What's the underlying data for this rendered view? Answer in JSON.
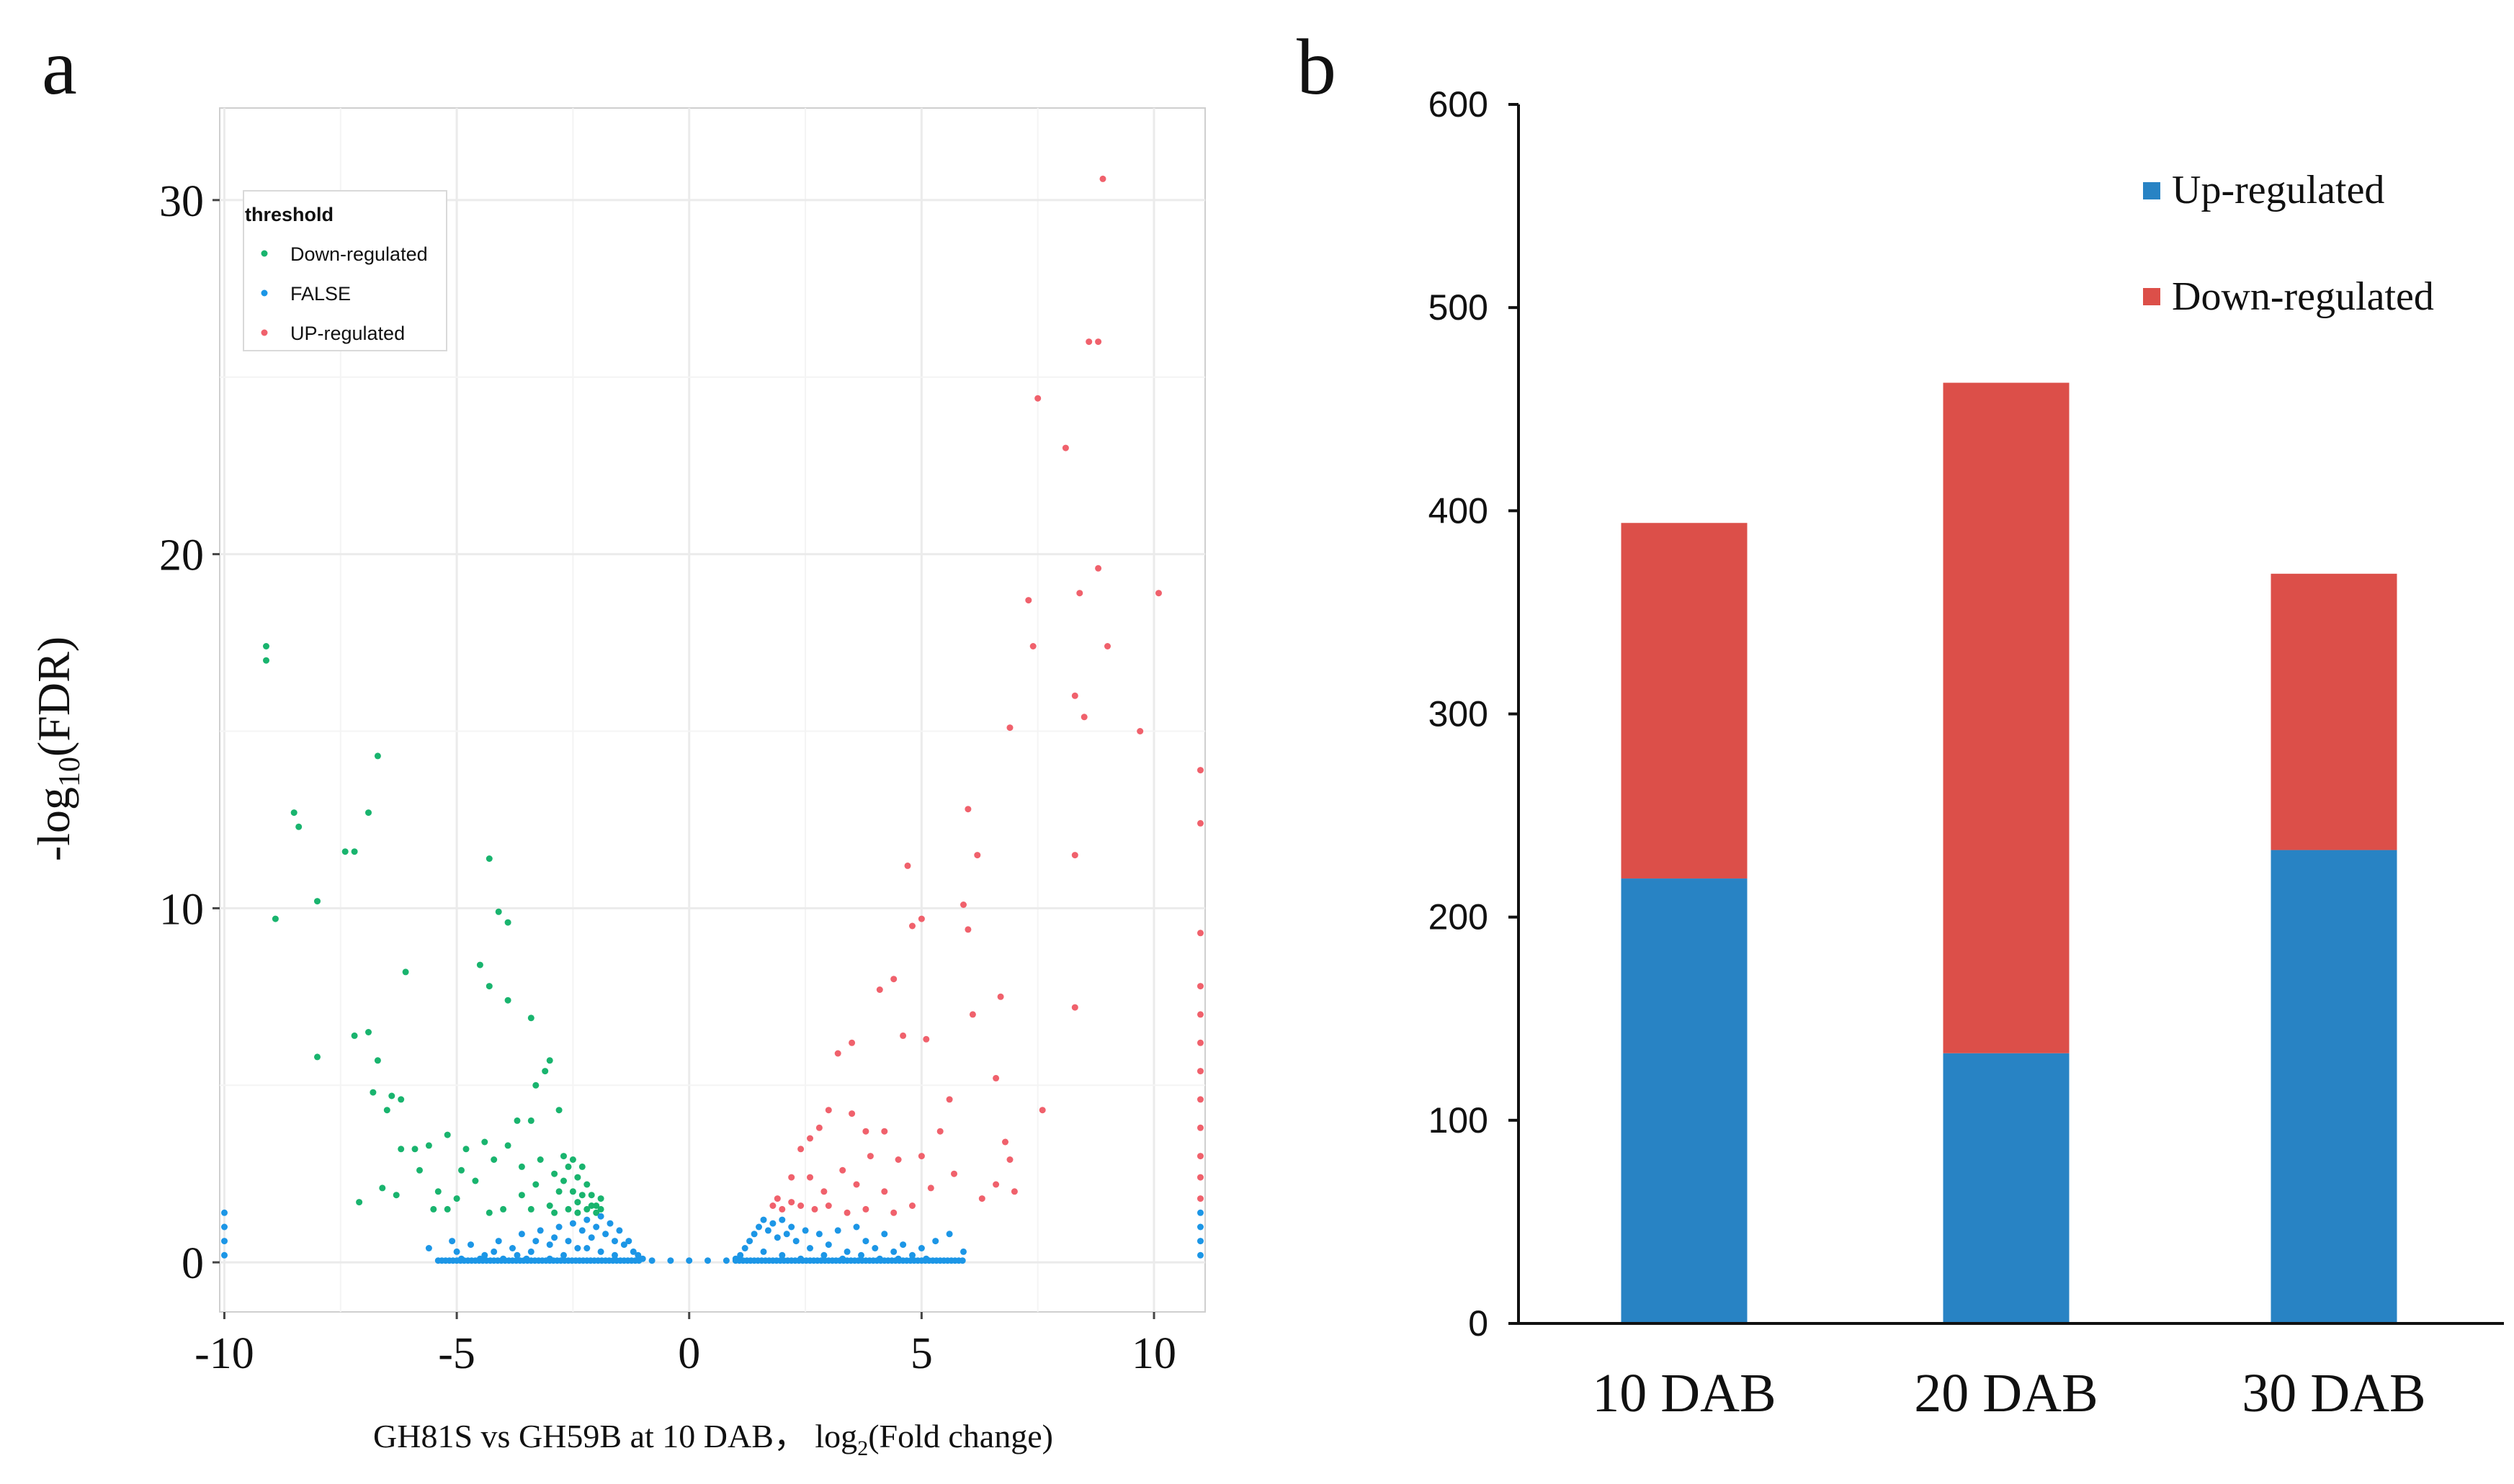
{
  "panels": {
    "a": {
      "label": "a"
    },
    "b": {
      "label": "b"
    }
  },
  "colors": {
    "down": "#19b46e",
    "false": "#1c96e6",
    "up": "#f0616c",
    "bar_up": "#2883c4",
    "bar_down": "#dc4f49",
    "grid": "#ebebeb"
  },
  "chart_data": [
    {
      "type": "scatter",
      "title": "",
      "xlabel": "GH81S vs GH59B at 10 DAB， log",
      "xlabel_sub": "2",
      "xlabel_tail": "(Fold change)",
      "ylabel": "-log",
      "ylabel_sub": "10",
      "ylabel_tail": "(FDR)",
      "xlim": [
        -10.1,
        11.1
      ],
      "ylim": [
        -1.4,
        32.6
      ],
      "x_ticks": [
        -10,
        -5,
        0,
        5,
        10
      ],
      "y_ticks": [
        0,
        10,
        20,
        30
      ],
      "x_tick_labels": [
        "-10",
        "-5",
        "0",
        "5",
        "10"
      ],
      "y_tick_labels": [
        "0",
        "10",
        "20",
        "30"
      ],
      "grid": true,
      "legend": {
        "title": "threshold",
        "position": "top-left",
        "entries": [
          "Down-regulated",
          "FALSE",
          "UP-regulated"
        ]
      },
      "series": [
        {
          "name": "Down-regulated",
          "color": "#19b46e",
          "points": [
            [
              -9.1,
              17.4
            ],
            [
              -9.1,
              17.0
            ],
            [
              -8.5,
              12.7
            ],
            [
              -8.4,
              12.3
            ],
            [
              -8.9,
              9.7
            ],
            [
              -8.0,
              10.2
            ],
            [
              -7.4,
              11.6
            ],
            [
              -7.2,
              11.6
            ],
            [
              -6.9,
              12.7
            ],
            [
              -6.7,
              14.3
            ],
            [
              -7.2,
              6.4
            ],
            [
              -6.9,
              6.5
            ],
            [
              -6.7,
              5.7
            ],
            [
              -8.0,
              5.8
            ],
            [
              -6.4,
              4.7
            ],
            [
              -6.2,
              4.6
            ],
            [
              -6.1,
              8.2
            ],
            [
              -4.5,
              8.4
            ],
            [
              -4.3,
              11.4
            ],
            [
              -4.1,
              9.9
            ],
            [
              -3.9,
              9.6
            ],
            [
              -4.3,
              7.8
            ],
            [
              -3.9,
              7.4
            ],
            [
              -3.4,
              6.9
            ],
            [
              -6.8,
              4.8
            ],
            [
              -6.5,
              4.3
            ],
            [
              -6.2,
              3.2
            ],
            [
              -5.9,
              3.2
            ],
            [
              -5.6,
              3.3
            ],
            [
              -5.2,
              3.6
            ],
            [
              -4.8,
              3.2
            ],
            [
              -4.4,
              3.4
            ],
            [
              -3.9,
              3.3
            ],
            [
              -3.7,
              4.0
            ],
            [
              -3.3,
              5.0
            ],
            [
              -3.1,
              5.4
            ],
            [
              -3.0,
              5.7
            ],
            [
              -2.8,
              4.3
            ],
            [
              -3.4,
              4.0
            ],
            [
              -4.2,
              2.9
            ],
            [
              -3.6,
              2.7
            ],
            [
              -3.2,
              2.9
            ],
            [
              -2.9,
              2.5
            ],
            [
              -2.7,
              3.0
            ],
            [
              -2.6,
              2.7
            ],
            [
              -2.5,
              2.9
            ],
            [
              -2.4,
              2.4
            ],
            [
              -2.3,
              2.7
            ],
            [
              -2.2,
              2.2
            ],
            [
              -2.1,
              1.9
            ],
            [
              -2.0,
              1.6
            ],
            [
              -1.9,
              1.8
            ],
            [
              -2.2,
              1.5
            ],
            [
              -2.4,
              1.7
            ],
            [
              -2.6,
              1.5
            ],
            [
              -2.8,
              2.0
            ],
            [
              -3.0,
              1.6
            ],
            [
              -3.3,
              2.2
            ],
            [
              -3.6,
              1.9
            ],
            [
              -4.0,
              1.5
            ],
            [
              -4.6,
              2.3
            ],
            [
              -5.0,
              1.8
            ],
            [
              -5.4,
              2.0
            ],
            [
              -5.8,
              2.6
            ],
            [
              -6.3,
              1.9
            ],
            [
              -6.6,
              2.1
            ],
            [
              -7.1,
              1.7
            ],
            [
              -5.5,
              1.5
            ],
            [
              -4.9,
              2.6
            ],
            [
              -2.7,
              2.3
            ],
            [
              -2.5,
              2.0
            ],
            [
              -2.3,
              1.9
            ],
            [
              -2.1,
              1.6
            ],
            [
              -2.0,
              1.4
            ],
            [
              -1.9,
              1.5
            ],
            [
              -2.4,
              1.4
            ],
            [
              -2.9,
              1.4
            ],
            [
              -3.4,
              1.5
            ],
            [
              -4.3,
              1.4
            ],
            [
              -5.2,
              1.5
            ]
          ]
        },
        {
          "name": "FALSE",
          "color": "#1c96e6",
          "points": [
            [
              -5.1,
              0.6
            ],
            [
              -5.6,
              0.4
            ],
            [
              -5.0,
              0.3
            ],
            [
              -4.7,
              0.5
            ],
            [
              -4.4,
              0.2
            ],
            [
              -4.1,
              0.6
            ],
            [
              -3.8,
              0.4
            ],
            [
              -3.6,
              0.8
            ],
            [
              -3.4,
              0.3
            ],
            [
              -3.2,
              0.9
            ],
            [
              -3.0,
              0.5
            ],
            [
              -2.8,
              1.0
            ],
            [
              -2.6,
              0.6
            ],
            [
              -2.5,
              1.1
            ],
            [
              -2.4,
              0.4
            ],
            [
              -2.3,
              0.9
            ],
            [
              -2.2,
              1.2
            ],
            [
              -2.1,
              0.7
            ],
            [
              -2.0,
              1.0
            ],
            [
              -1.9,
              1.3
            ],
            [
              -1.8,
              0.8
            ],
            [
              -1.7,
              1.1
            ],
            [
              -1.6,
              0.6
            ],
            [
              -1.5,
              0.9
            ],
            [
              -1.4,
              0.5
            ],
            [
              -1.3,
              0.6
            ],
            [
              -1.2,
              0.3
            ],
            [
              -1.1,
              0.2
            ],
            [
              -1.0,
              0.1
            ],
            [
              -4.9,
              0.1
            ],
            [
              -4.5,
              0.1
            ],
            [
              -4.0,
              0.1
            ],
            [
              -3.5,
              0.1
            ],
            [
              -3.0,
              0.1
            ],
            [
              -2.7,
              0.2
            ],
            [
              -2.9,
              0.7
            ],
            [
              -3.3,
              0.6
            ],
            [
              -3.7,
              0.2
            ],
            [
              -4.2,
              0.3
            ],
            [
              -2.2,
              0.4
            ],
            [
              -1.9,
              0.3
            ],
            [
              -1.6,
              0.2
            ],
            [
              1.0,
              0.1
            ],
            [
              1.1,
              0.2
            ],
            [
              1.2,
              0.4
            ],
            [
              1.3,
              0.6
            ],
            [
              1.4,
              0.8
            ],
            [
              1.5,
              1.0
            ],
            [
              1.6,
              1.2
            ],
            [
              1.7,
              0.9
            ],
            [
              1.8,
              1.1
            ],
            [
              1.9,
              0.7
            ],
            [
              2.0,
              1.2
            ],
            [
              2.1,
              0.8
            ],
            [
              2.2,
              1.0
            ],
            [
              2.3,
              0.6
            ],
            [
              2.5,
              0.9
            ],
            [
              2.6,
              0.4
            ],
            [
              2.8,
              0.8
            ],
            [
              3.0,
              0.5
            ],
            [
              3.2,
              0.9
            ],
            [
              3.4,
              0.3
            ],
            [
              3.6,
              1.0
            ],
            [
              3.8,
              0.6
            ],
            [
              4.0,
              0.4
            ],
            [
              4.2,
              0.8
            ],
            [
              4.4,
              0.3
            ],
            [
              4.6,
              0.5
            ],
            [
              4.8,
              0.2
            ],
            [
              5.0,
              0.4
            ],
            [
              5.3,
              0.6
            ],
            [
              5.6,
              0.8
            ],
            [
              5.9,
              0.3
            ],
            [
              1.6,
              0.3
            ],
            [
              2.0,
              0.2
            ],
            [
              2.4,
              0.1
            ],
            [
              2.9,
              0.2
            ],
            [
              3.3,
              0.1
            ],
            [
              3.7,
              0.2
            ],
            [
              4.1,
              0.1
            ],
            [
              4.5,
              0.1
            ],
            [
              5.1,
              0.1
            ],
            [
              -10.0,
              0.2
            ],
            [
              -10.0,
              0.6
            ],
            [
              -10.0,
              1.0
            ],
            [
              -10.0,
              1.4
            ],
            [
              11.0,
              0.2
            ],
            [
              11.0,
              0.6
            ],
            [
              11.0,
              1.0
            ],
            [
              11.0,
              1.4
            ]
          ]
        },
        {
          "name": "UP-regulated",
          "color": "#f0616c",
          "points": [
            [
              8.9,
              30.6
            ],
            [
              8.6,
              26.0
            ],
            [
              8.8,
              26.0
            ],
            [
              7.5,
              24.4
            ],
            [
              8.1,
              23.0
            ],
            [
              8.8,
              19.6
            ],
            [
              8.4,
              18.9
            ],
            [
              10.1,
              18.9
            ],
            [
              7.3,
              18.7
            ],
            [
              9.0,
              17.4
            ],
            [
              7.4,
              17.4
            ],
            [
              8.5,
              15.4
            ],
            [
              8.3,
              16.0
            ],
            [
              9.7,
              15.0
            ],
            [
              6.9,
              15.1
            ],
            [
              6.0,
              12.8
            ],
            [
              6.2,
              11.5
            ],
            [
              5.9,
              10.1
            ],
            [
              4.7,
              11.2
            ],
            [
              5.0,
              9.7
            ],
            [
              4.8,
              9.5
            ],
            [
              6.0,
              9.4
            ],
            [
              8.3,
              11.5
            ],
            [
              8.3,
              7.2
            ],
            [
              6.7,
              7.5
            ],
            [
              6.1,
              7.0
            ],
            [
              4.4,
              8.0
            ],
            [
              4.1,
              7.7
            ],
            [
              3.2,
              5.9
            ],
            [
              3.5,
              6.2
            ],
            [
              4.6,
              6.4
            ],
            [
              5.1,
              6.3
            ],
            [
              6.6,
              5.2
            ],
            [
              7.6,
              4.3
            ],
            [
              6.8,
              3.4
            ],
            [
              6.9,
              2.9
            ],
            [
              7.0,
              2.0
            ],
            [
              5.6,
              4.6
            ],
            [
              5.4,
              3.7
            ],
            [
              5.0,
              3.0
            ],
            [
              4.5,
              2.9
            ],
            [
              4.2,
              3.7
            ],
            [
              3.8,
              3.7
            ],
            [
              3.5,
              4.2
            ],
            [
              3.0,
              4.3
            ],
            [
              2.8,
              3.8
            ],
            [
              2.6,
              3.5
            ],
            [
              2.4,
              3.2
            ],
            [
              2.2,
              2.4
            ],
            [
              2.6,
              2.4
            ],
            [
              2.9,
              2.0
            ],
            [
              3.3,
              2.6
            ],
            [
              3.6,
              2.2
            ],
            [
              3.9,
              3.0
            ],
            [
              4.2,
              2.0
            ],
            [
              4.8,
              1.6
            ],
            [
              5.2,
              2.1
            ],
            [
              5.7,
              2.5
            ],
            [
              6.3,
              1.8
            ],
            [
              6.6,
              2.2
            ],
            [
              1.8,
              1.6
            ],
            [
              1.9,
              1.8
            ],
            [
              2.0,
              1.5
            ],
            [
              2.2,
              1.7
            ],
            [
              2.4,
              1.6
            ],
            [
              2.7,
              1.5
            ],
            [
              3.0,
              1.6
            ],
            [
              3.4,
              1.4
            ],
            [
              3.8,
              1.5
            ],
            [
              4.4,
              1.4
            ],
            [
              11.0,
              1.8
            ],
            [
              11.0,
              2.4
            ],
            [
              11.0,
              3.0
            ],
            [
              11.0,
              3.8
            ],
            [
              11.0,
              4.6
            ],
            [
              11.0,
              5.4
            ],
            [
              11.0,
              6.2
            ],
            [
              11.0,
              7.0
            ],
            [
              11.0,
              7.8
            ],
            [
              11.0,
              9.3
            ],
            [
              11.0,
              12.4
            ],
            [
              11.0,
              13.9
            ]
          ]
        }
      ]
    },
    {
      "type": "bar",
      "stacked": true,
      "title": "",
      "xlabel": "",
      "ylabel": "",
      "categories": [
        "10 DAB",
        "20 DAB",
        "30 DAB"
      ],
      "ylim": [
        0,
        600
      ],
      "y_ticks": [
        0,
        100,
        200,
        300,
        400,
        500,
        600
      ],
      "y_tick_labels": [
        "0",
        "100",
        "200",
        "300",
        "400",
        "500",
        "600"
      ],
      "grid": false,
      "legend": {
        "position": "top-right",
        "entries": [
          "Up-regulated",
          "Down-regulated"
        ]
      },
      "series": [
        {
          "name": "Up-regulated",
          "color": "#2883c4",
          "values": [
            219,
            133,
            233
          ]
        },
        {
          "name": "Down-regulated",
          "color": "#dc4f49",
          "values": [
            175,
            330,
            136
          ]
        }
      ]
    }
  ]
}
